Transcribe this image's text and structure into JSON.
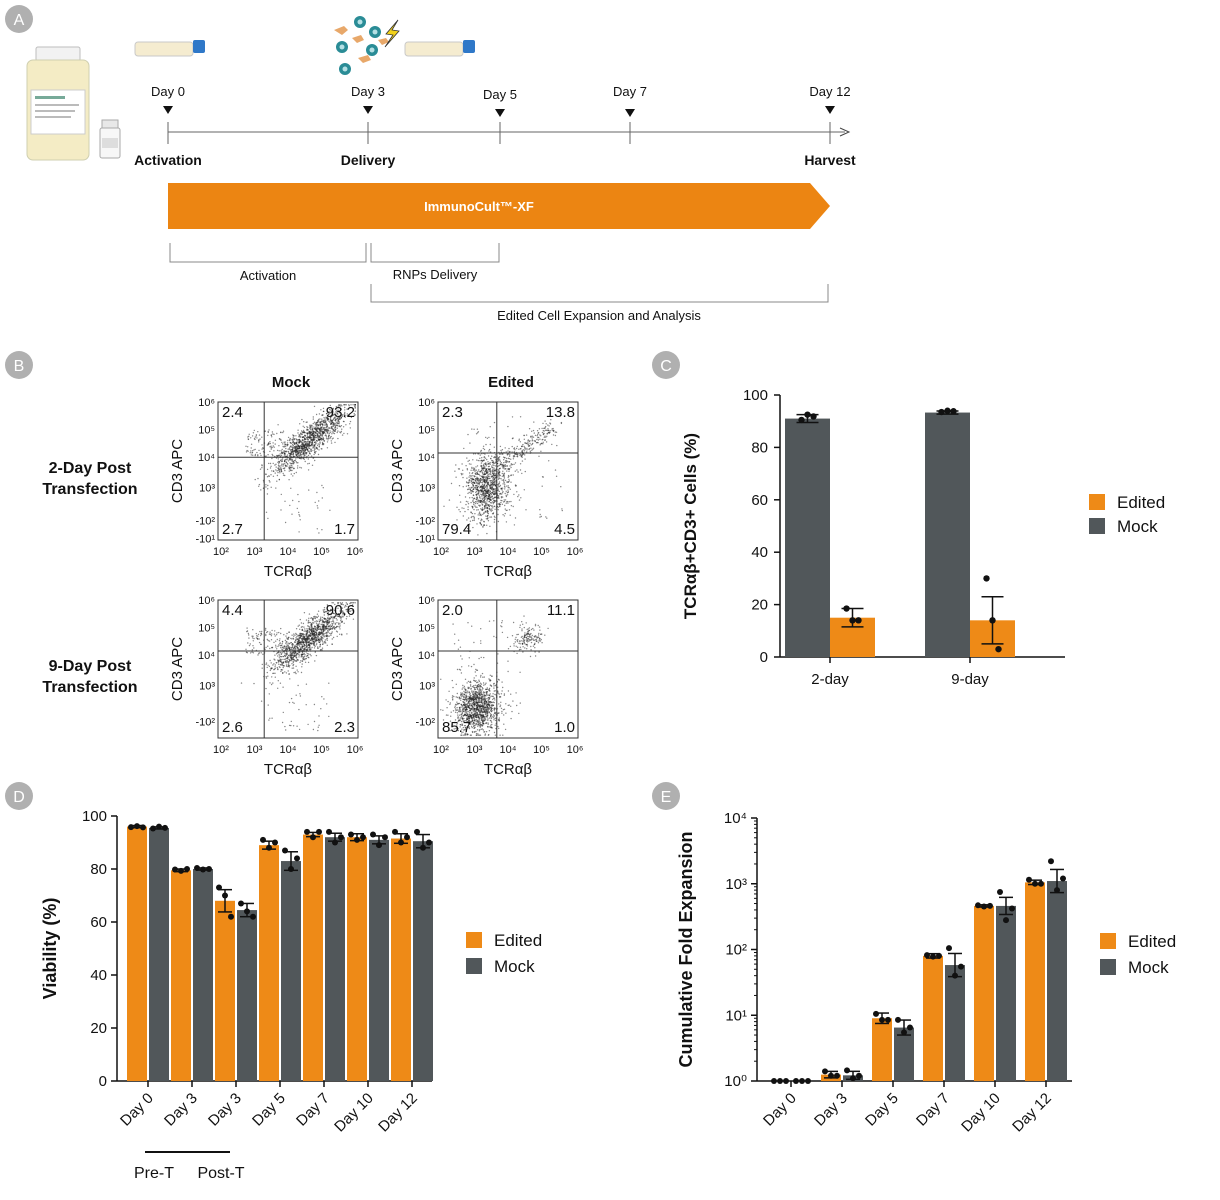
{
  "colors": {
    "edited": "#ee8a17",
    "mock": "#51575a",
    "badge": "#b0b0b0",
    "arrow": "#ec8512"
  },
  "panel_labels": [
    "A",
    "B",
    "C",
    "D",
    "E"
  ],
  "panel_a": {
    "days": [
      "Day 0",
      "Day 3",
      "Day 5",
      "Day 7",
      "Day 12"
    ],
    "events": [
      "Activation",
      "Delivery",
      "Harvest"
    ],
    "arrow_label": "ImmunoCult™-XF",
    "brackets": [
      "Activation",
      "RNPs Delivery",
      "Edited Cell Expansion and Analysis"
    ],
    "icons": [
      "medium-bottle-icon",
      "vial-icon",
      "flask-icon",
      "cells-icon",
      "lightning-icon",
      "flask-icon"
    ]
  },
  "panel_b": {
    "columns": [
      "Mock",
      "Edited"
    ],
    "rows": [
      "2-Day Post\nTransfection",
      "9-Day Post\nTransfection"
    ],
    "x_label": "TCRαβ",
    "y_label": "CD3 APC",
    "x_ticks": [
      "10²",
      "10³",
      "10⁴",
      "10⁵",
      "10⁶"
    ],
    "y_ticks_top": [
      "10⁶",
      "10⁵",
      "10⁴",
      "10³",
      "-10²",
      "-10¹"
    ],
    "y_ticks_bottom": [
      "10⁶",
      "10⁵",
      "10⁴",
      "10³",
      "-10²"
    ],
    "quadrants": [
      {
        "ul": "2.4",
        "ur": "93.2",
        "ll": "2.7",
        "lr": "1.7"
      },
      {
        "ul": "2.3",
        "ur": "13.8",
        "ll": "79.4",
        "lr": "4.5"
      },
      {
        "ul": "4.4",
        "ur": "90.6",
        "ll": "2.6",
        "lr": "2.3"
      },
      {
        "ul": "2.0",
        "ur": "11.1",
        "ll": "85.7",
        "lr": "1.0"
      }
    ]
  },
  "chart_data": [
    {
      "type": "bar",
      "panel": "C",
      "categories": [
        "2-day",
        "9-day"
      ],
      "ylabel": "TCRαβ+CD3+ Cells (%)",
      "ylim": [
        0,
        100
      ],
      "yticks": [
        0,
        20,
        40,
        60,
        80,
        100
      ],
      "legend": [
        "Edited",
        "Mock"
      ],
      "legend_position": "right",
      "series": [
        {
          "name": "Mock",
          "values": [
            91,
            93.3
          ],
          "err": [
            1.5,
            0.6
          ],
          "points": [
            [
              90.5,
              92.5,
              91.8
            ],
            [
              93.5,
              94.0,
              93.8
            ]
          ]
        },
        {
          "name": "Edited",
          "values": [
            15,
            14
          ],
          "err": [
            3.5,
            9
          ],
          "points": [
            [
              18.5,
              14,
              14
            ],
            [
              30,
              14,
              3
            ]
          ]
        }
      ]
    },
    {
      "type": "bar",
      "panel": "D",
      "categories": [
        "Day 0",
        "Day 3",
        "Day 3",
        "Day 5",
        "Day 7",
        "Day 10",
        "Day 12"
      ],
      "group_labels": [
        "Pre-T",
        "Post-T"
      ],
      "ylabel": "Viability (%)",
      "ylim": [
        0,
        100
      ],
      "yticks": [
        0,
        20,
        40,
        60,
        80,
        100
      ],
      "legend": [
        "Edited",
        "Mock"
      ],
      "legend_position": "right",
      "series": [
        {
          "name": "Edited",
          "values": [
            96,
            79.5,
            68,
            89,
            93,
            92,
            91.5
          ],
          "err": [
            0.4,
            0.5,
            4.2,
            1.5,
            0.8,
            1.3,
            1.8
          ],
          "points": [
            [
              95.8,
              96.2,
              95.7
            ],
            [
              79.8,
              79.3,
              80.0
            ],
            [
              73,
              70,
              62
            ],
            [
              91,
              88,
              90
            ],
            [
              94,
              92,
              94
            ],
            [
              93,
              91,
              92
            ],
            [
              94,
              90,
              92
            ]
          ]
        },
        {
          "name": "Mock",
          "values": [
            95.5,
            80,
            64.5,
            83,
            92,
            91,
            90.5
          ],
          "err": [
            0.4,
            0.4,
            2.5,
            3.5,
            1.5,
            1.5,
            2.5
          ],
          "points": [
            [
              95.3,
              96.0,
              95.5
            ],
            [
              80.4,
              79.8,
              80.0
            ],
            [
              67,
              64,
              62
            ],
            [
              87,
              80,
              84
            ],
            [
              94,
              90,
              92
            ],
            [
              93,
              89,
              92
            ],
            [
              94,
              88,
              90
            ]
          ]
        }
      ]
    },
    {
      "type": "bar",
      "panel": "E",
      "categories": [
        "Day 0",
        "Day 3",
        "Day 5",
        "Day 7",
        "Day 10",
        "Day 12"
      ],
      "ylabel": "Cumulative Fold Expansion",
      "yscale": "log",
      "ylim": [
        1,
        10000
      ],
      "yticks": [
        "10⁰",
        "10¹",
        "10²",
        "10³",
        "10⁴"
      ],
      "legend": [
        "Edited",
        "Mock"
      ],
      "legend_position": "right",
      "series": [
        {
          "name": "Edited",
          "values": [
            1,
            1.25,
            9,
            80,
            460,
            1050
          ],
          "err": [
            1.02,
            1.12,
            1.2,
            1.08,
            1.04,
            1.08
          ],
          "points": [
            [
              1,
              1,
              1
            ],
            [
              1.4,
              1.2,
              1.2
            ],
            [
              10.5,
              8.5,
              8.5
            ],
            [
              82,
              78,
              80
            ],
            [
              470,
              450,
              460
            ],
            [
              1150,
              1000,
              1000
            ]
          ]
        },
        {
          "name": "Mock",
          "values": [
            1,
            1.22,
            6.5,
            58,
            460,
            1100
          ],
          "err": [
            1.02,
            1.15,
            1.3,
            1.5,
            1.35,
            1.5
          ],
          "points": [
            [
              1,
              1,
              1
            ],
            [
              1.45,
              1.1,
              1.2
            ],
            [
              8.5,
              5.5,
              6.5
            ],
            [
              105,
              40,
              55
            ],
            [
              750,
              280,
              420
            ],
            [
              2200,
              800,
              1200
            ]
          ]
        }
      ]
    }
  ]
}
